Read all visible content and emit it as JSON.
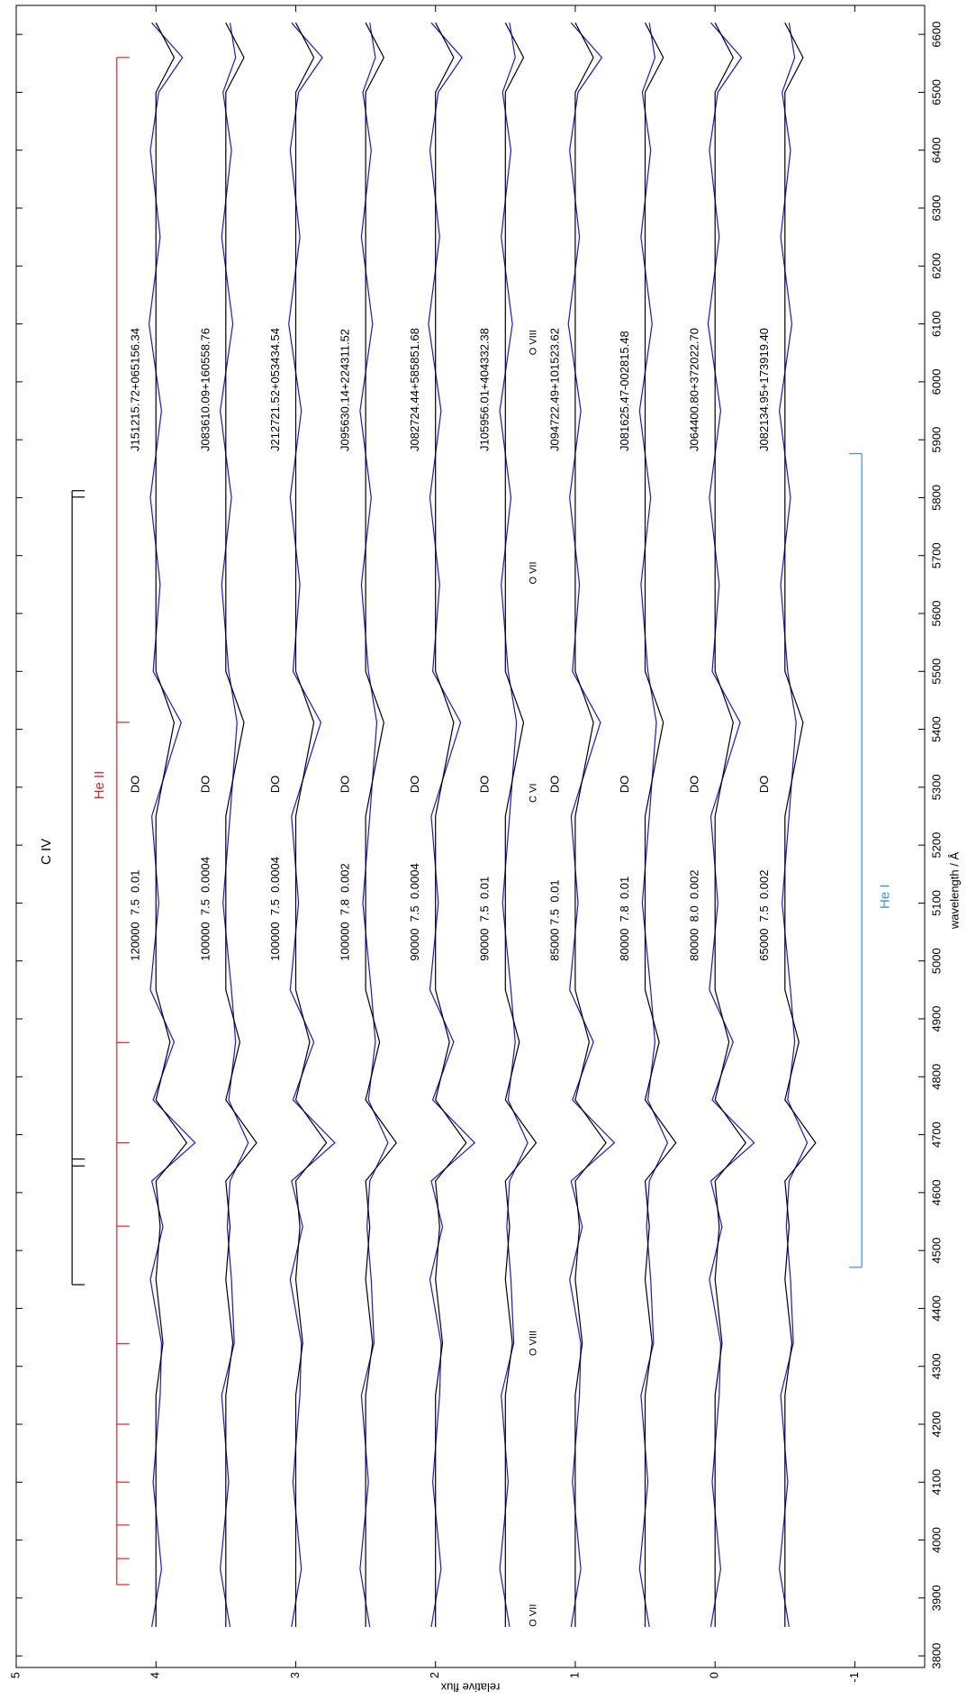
{
  "chart_data": {
    "type": "line",
    "xlabel": "wavelength / Å",
    "ylabel": "relative flux",
    "xlim": [
      3780,
      6650
    ],
    "ylim": [
      -1.5,
      5
    ],
    "xticks": [
      3800,
      3900,
      4000,
      4100,
      4200,
      4300,
      4400,
      4500,
      4600,
      4700,
      4800,
      4900,
      5000,
      5100,
      5200,
      5300,
      5400,
      5500,
      5600,
      5700,
      5800,
      5900,
      6000,
      6100,
      6200,
      6300,
      6400,
      6500,
      6600
    ],
    "yticks": [
      -1,
      0,
      1,
      2,
      3,
      4,
      5
    ],
    "model_color": "#000000",
    "x": [
      3850,
      3950,
      4100,
      4250,
      4340,
      4450,
      4541,
      4620,
      4686,
      4760,
      4860,
      4950,
      5100,
      5250,
      5412,
      5500,
      5650,
      5800,
      5950,
      6100,
      6250,
      6400,
      6500,
      6560,
      6620
    ],
    "series": [
      {
        "name": "J151215.72+065156.34",
        "label": "120000  7.5  0.01",
        "class": "DO",
        "color": "#1414f0",
        "values": [
          4.03,
          3.96,
          4.02,
          3.97,
          3.96,
          4.04,
          3.95,
          4.03,
          3.72,
          4.02,
          3.87,
          4.04,
          3.98,
          4.03,
          3.82,
          4.02,
          3.97,
          4.04,
          3.96,
          4.05,
          3.97,
          4.04,
          3.98,
          3.81,
          4.03
        ],
        "model": [
          4,
          4,
          4,
          4,
          3.95,
          4,
          3.97,
          4,
          3.78,
          4,
          3.9,
          4,
          4,
          4,
          3.87,
          4,
          4,
          4,
          4,
          4,
          4,
          4,
          4,
          3.87,
          4
        ]
      },
      {
        "name": "J083610.09+160558.76",
        "label": "100000  7.5  0.0004",
        "class": "DO",
        "color": "#1414f0",
        "values": [
          3.47,
          3.54,
          3.48,
          3.53,
          3.44,
          3.46,
          3.49,
          3.47,
          3.34,
          3.48,
          3.43,
          3.46,
          3.52,
          3.47,
          3.42,
          3.48,
          3.53,
          3.46,
          3.54,
          3.45,
          3.53,
          3.46,
          3.52,
          3.43,
          3.47
        ],
        "model": [
          3.5,
          3.5,
          3.5,
          3.5,
          3.45,
          3.5,
          3.47,
          3.5,
          3.28,
          3.5,
          3.4,
          3.5,
          3.5,
          3.5,
          3.37,
          3.5,
          3.5,
          3.5,
          3.5,
          3.5,
          3.5,
          3.5,
          3.5,
          3.37,
          3.5
        ]
      },
      {
        "name": "J212721.52+053434.54",
        "label": "100000  7.5  0.0004",
        "class": "DO",
        "color": "#1414f0",
        "values": [
          3.03,
          2.96,
          3.02,
          2.97,
          2.96,
          3.04,
          2.95,
          3.03,
          2.72,
          3.02,
          2.87,
          3.04,
          2.98,
          3.03,
          2.82,
          3.02,
          2.97,
          3.04,
          2.96,
          3.05,
          2.97,
          3.04,
          2.98,
          2.81,
          3.03
        ],
        "model": [
          3,
          3,
          3,
          3,
          2.95,
          3,
          2.97,
          3,
          2.78,
          3,
          2.9,
          3,
          3,
          3,
          2.87,
          3,
          3,
          3,
          3,
          3,
          3,
          3,
          3,
          2.87,
          3
        ]
      },
      {
        "name": "J095630.14+224311.52",
        "label": "100000  7.8  0.002",
        "class": "DO",
        "color": "#1414f0",
        "values": [
          2.47,
          2.54,
          2.48,
          2.53,
          2.44,
          2.46,
          2.49,
          2.47,
          2.34,
          2.48,
          2.43,
          2.46,
          2.52,
          2.47,
          2.42,
          2.48,
          2.53,
          2.46,
          2.54,
          2.45,
          2.53,
          2.46,
          2.52,
          2.43,
          2.47
        ],
        "model": [
          2.5,
          2.5,
          2.5,
          2.5,
          2.45,
          2.5,
          2.47,
          2.5,
          2.28,
          2.5,
          2.4,
          2.5,
          2.5,
          2.5,
          2.37,
          2.5,
          2.5,
          2.5,
          2.5,
          2.5,
          2.5,
          2.5,
          2.5,
          2.37,
          2.5
        ]
      },
      {
        "name": "J082724.44+585851.68",
        "label": "90000  7.5  0.0004",
        "class": "DO",
        "color": "#1414f0",
        "values": [
          2.03,
          1.96,
          2.02,
          1.97,
          1.96,
          2.04,
          1.95,
          2.03,
          1.72,
          2.02,
          1.87,
          2.04,
          1.98,
          2.03,
          1.82,
          2.02,
          1.97,
          2.04,
          1.96,
          2.05,
          1.97,
          2.04,
          1.98,
          1.81,
          2.03
        ],
        "model": [
          2,
          2,
          2,
          2,
          1.95,
          2,
          1.97,
          2,
          1.78,
          2,
          1.9,
          2,
          2,
          2,
          1.87,
          2,
          2,
          2,
          2,
          2,
          2,
          2,
          2,
          1.87,
          2
        ]
      },
      {
        "name": "J105956.01+404332.38",
        "label": "90000  7.5  0.01",
        "class": "DO",
        "color": "#1414f0",
        "values": [
          1.47,
          1.54,
          1.48,
          1.53,
          1.44,
          1.46,
          1.49,
          1.47,
          1.34,
          1.48,
          1.43,
          1.46,
          1.52,
          1.47,
          1.42,
          1.48,
          1.53,
          1.46,
          1.54,
          1.45,
          1.53,
          1.46,
          1.52,
          1.43,
          1.47
        ],
        "model": [
          1.5,
          1.5,
          1.5,
          1.5,
          1.45,
          1.5,
          1.47,
          1.5,
          1.28,
          1.5,
          1.4,
          1.5,
          1.5,
          1.5,
          1.37,
          1.5,
          1.5,
          1.5,
          1.5,
          1.5,
          1.5,
          1.5,
          1.5,
          1.37,
          1.5
        ]
      },
      {
        "name": "J094722.49+101523.62",
        "label": "85000 7.5  0.01",
        "class": "DO",
        "color": "#1414f0",
        "values": [
          1.03,
          0.96,
          1.02,
          0.97,
          0.96,
          1.04,
          0.95,
          1.03,
          0.72,
          1.02,
          0.87,
          1.04,
          0.98,
          1.03,
          0.82,
          1.02,
          0.97,
          1.04,
          0.96,
          1.05,
          0.97,
          1.04,
          0.98,
          0.81,
          1.03
        ],
        "model": [
          1,
          1,
          1,
          1,
          0.95,
          1,
          0.97,
          1,
          0.78,
          1,
          0.9,
          1,
          1,
          1,
          0.87,
          1,
          1,
          1,
          1,
          1,
          1,
          1,
          1,
          0.87,
          1
        ]
      },
      {
        "name": "J081625.47-002815.48",
        "label": "80000  7.8  0.01",
        "class": "DO",
        "color": "#1414f0",
        "values": [
          0.47,
          0.54,
          0.48,
          0.53,
          0.44,
          0.46,
          0.49,
          0.47,
          0.34,
          0.48,
          0.43,
          0.46,
          0.52,
          0.47,
          0.42,
          0.48,
          0.53,
          0.46,
          0.54,
          0.45,
          0.53,
          0.46,
          0.52,
          0.43,
          0.47
        ],
        "model": [
          0.5,
          0.5,
          0.5,
          0.5,
          0.45,
          0.5,
          0.47,
          0.5,
          0.28,
          0.5,
          0.4,
          0.5,
          0.5,
          0.5,
          0.37,
          0.5,
          0.5,
          0.5,
          0.5,
          0.5,
          0.5,
          0.5,
          0.5,
          0.37,
          0.5
        ]
      },
      {
        "name": "J064400.80+372022.70",
        "label": "80000  8.0  0.002",
        "class": "DO",
        "color": "#1414f0",
        "values": [
          0.03,
          -0.04,
          0.02,
          -0.03,
          -0.04,
          0.04,
          -0.05,
          0.03,
          -0.28,
          0.02,
          -0.13,
          0.04,
          -0.02,
          0.03,
          -0.18,
          0.02,
          -0.03,
          0.04,
          -0.04,
          0.05,
          -0.03,
          0.04,
          -0.02,
          -0.19,
          0.03
        ],
        "model": [
          0,
          0,
          0,
          0,
          -0.05,
          0,
          -0.03,
          0,
          -0.22,
          0,
          -0.1,
          0,
          0,
          0,
          -0.13,
          0,
          0,
          0,
          0,
          0,
          0,
          0,
          0,
          -0.13,
          0
        ]
      },
      {
        "name": "J082134.95+173919.40",
        "label": "65000  7.5  0.002",
        "class": "DO",
        "color": "#1414f0",
        "values": [
          -0.53,
          -0.46,
          -0.52,
          -0.47,
          -0.56,
          -0.54,
          -0.51,
          -0.53,
          -0.66,
          -0.52,
          -0.57,
          -0.54,
          -0.48,
          -0.53,
          -0.58,
          -0.52,
          -0.47,
          -0.54,
          -0.46,
          -0.55,
          -0.47,
          -0.54,
          -0.48,
          -0.57,
          -0.53
        ],
        "model": [
          -0.5,
          -0.5,
          -0.5,
          -0.5,
          -0.55,
          -0.5,
          -0.53,
          -0.5,
          -0.72,
          -0.5,
          -0.6,
          -0.5,
          -0.5,
          -0.5,
          -0.63,
          -0.5,
          -0.5,
          -0.5,
          -0.5,
          -0.5,
          -0.5,
          -0.5,
          -0.5,
          -0.63,
          -0.5
        ]
      }
    ],
    "line_ids": [
      {
        "name": "C IV",
        "color": "#000000",
        "wavelengths": [
          4441,
          4646,
          4658,
          5801,
          5812
        ]
      },
      {
        "name": "He II",
        "color": "#e8221e",
        "wavelengths": [
          3923,
          3968,
          4026,
          4100,
          4200,
          4339,
          4542,
          4686,
          4859,
          5412,
          6560
        ]
      },
      {
        "name": "He I",
        "color": "#3b8de8",
        "wavelengths": [
          4471,
          5876
        ]
      }
    ],
    "annotations": [
      {
        "text": "O VII",
        "x": 3870
      },
      {
        "text": "O VIII",
        "x": 4340
      },
      {
        "text": "C VI",
        "x": 5290
      },
      {
        "text": "O VII",
        "x": 5670
      },
      {
        "text": "O VIII",
        "x": 6068
      }
    ]
  }
}
